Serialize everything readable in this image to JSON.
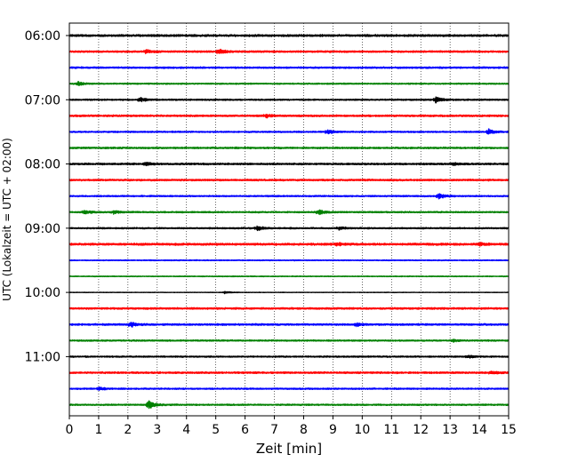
{
  "chart_data": {
    "type": "line",
    "title": "",
    "xlabel": "Zeit  [min]",
    "ylabel": "UTC (Lokalzeit = UTC + 02:00)",
    "xlim": [
      0,
      15
    ],
    "x_ticks": [
      "0",
      "1",
      "2",
      "3",
      "4",
      "5",
      "6",
      "7",
      "8",
      "9",
      "10",
      "11",
      "12",
      "13",
      "14",
      "15"
    ],
    "y_ticks": [
      {
        "label": "06:00",
        "trace": 0
      },
      {
        "label": "07:00",
        "trace": 4
      },
      {
        "label": "08:00",
        "trace": 8
      },
      {
        "label": "09:00",
        "trace": 12
      },
      {
        "label": "10:00",
        "trace": 16
      },
      {
        "label": "11:00",
        "trace": 20
      }
    ],
    "grid": {
      "vertical": true,
      "horizontal": false,
      "style": "dotted"
    },
    "trace_interval_minutes": 15,
    "color_cycle": [
      "#000000",
      "#ff0000",
      "#0000ff",
      "#008000"
    ],
    "traces": [
      {
        "start": "06:00",
        "amplitude": 0.35,
        "events": []
      },
      {
        "start": "06:15",
        "amplitude": 0.3,
        "events": [
          {
            "t": 2.6,
            "amp": 0.6
          },
          {
            "t": 5.1,
            "amp": 0.8
          }
        ]
      },
      {
        "start": "06:30",
        "amplitude": 0.28,
        "events": []
      },
      {
        "start": "06:45",
        "amplitude": 0.22,
        "events": [
          {
            "t": 0.3,
            "amp": 0.7
          }
        ]
      },
      {
        "start": "07:00",
        "amplitude": 0.25,
        "events": [
          {
            "t": 2.4,
            "amp": 0.8
          },
          {
            "t": 12.5,
            "amp": 1.0
          }
        ]
      },
      {
        "start": "07:15",
        "amplitude": 0.3,
        "events": [
          {
            "t": 6.7,
            "amp": 0.6
          }
        ]
      },
      {
        "start": "07:30",
        "amplitude": 0.25,
        "events": [
          {
            "t": 8.8,
            "amp": 0.7
          },
          {
            "t": 14.3,
            "amp": 1.0
          }
        ]
      },
      {
        "start": "07:45",
        "amplitude": 0.28,
        "events": []
      },
      {
        "start": "08:00",
        "amplitude": 0.3,
        "events": [
          {
            "t": 2.6,
            "amp": 0.5
          },
          {
            "t": 13.1,
            "amp": 0.5
          }
        ]
      },
      {
        "start": "08:15",
        "amplitude": 0.3,
        "events": []
      },
      {
        "start": "08:30",
        "amplitude": 0.25,
        "events": [
          {
            "t": 12.6,
            "amp": 0.9
          }
        ]
      },
      {
        "start": "08:45",
        "amplitude": 0.25,
        "events": [
          {
            "t": 0.5,
            "amp": 0.7
          },
          {
            "t": 1.5,
            "amp": 0.6
          },
          {
            "t": 8.5,
            "amp": 0.9
          }
        ]
      },
      {
        "start": "09:00",
        "amplitude": 0.25,
        "events": [
          {
            "t": 6.4,
            "amp": 0.8
          },
          {
            "t": 9.2,
            "amp": 0.5
          }
        ]
      },
      {
        "start": "09:15",
        "amplitude": 0.35,
        "events": [
          {
            "t": 9.1,
            "amp": 0.5
          },
          {
            "t": 14.0,
            "amp": 0.5
          }
        ]
      },
      {
        "start": "09:30",
        "amplitude": 0.18,
        "events": []
      },
      {
        "start": "09:45",
        "amplitude": 0.15,
        "events": []
      },
      {
        "start": "10:00",
        "amplitude": 0.1,
        "events": [
          {
            "t": 5.3,
            "amp": 0.4
          }
        ]
      },
      {
        "start": "10:15",
        "amplitude": 0.3,
        "events": []
      },
      {
        "start": "10:30",
        "amplitude": 0.3,
        "events": [
          {
            "t": 2.1,
            "amp": 0.8
          },
          {
            "t": 9.8,
            "amp": 0.5
          }
        ]
      },
      {
        "start": "10:45",
        "amplitude": 0.25,
        "events": [
          {
            "t": 13.1,
            "amp": 0.4
          }
        ]
      },
      {
        "start": "11:00",
        "amplitude": 0.25,
        "events": [
          {
            "t": 13.6,
            "amp": 0.5
          }
        ]
      },
      {
        "start": "11:15",
        "amplitude": 0.3,
        "events": [
          {
            "t": 14.4,
            "amp": 0.4
          }
        ]
      },
      {
        "start": "11:30",
        "amplitude": 0.25,
        "events": [
          {
            "t": 1.0,
            "amp": 0.5
          }
        ]
      },
      {
        "start": "11:45",
        "amplitude": 0.25,
        "events": [
          {
            "t": 2.7,
            "amp": 1.6
          }
        ]
      }
    ]
  }
}
